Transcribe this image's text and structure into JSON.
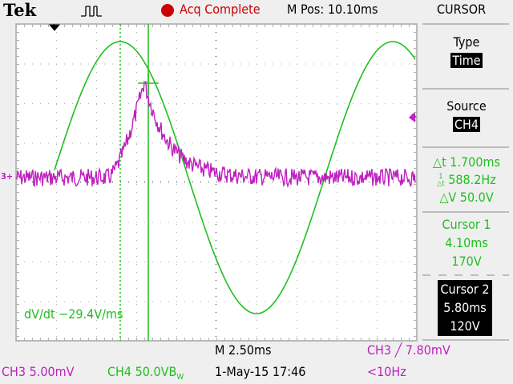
{
  "header": {
    "brand": "Tek",
    "acq_status": "Acq Complete",
    "m_pos": "M Pos: 10.10ms",
    "menu_title": "CURSOR"
  },
  "side_menu": {
    "type_label": "Type",
    "type_value": "Time",
    "source_label": "Source",
    "source_value": "CH4",
    "delta_t": "△t 1.700ms",
    "inv_delta_t": "588.2Hz",
    "delta_v": "△V 50.0V",
    "cursor1_label": "Cursor 1",
    "cursor1_time": "4.10ms",
    "cursor1_value": "170V",
    "cursor2_label": "Cursor 2",
    "cursor2_time": "5.80ms",
    "cursor2_value": "120V"
  },
  "screen": {
    "measurement": "dV/dt −29.4V/ms",
    "ch3_marker": "3+"
  },
  "footer": {
    "timebase": "M 2.50ms",
    "trigger": "CH3 ╱ 7.80mV",
    "ch3_scale": "CH3  5.00mV",
    "ch4_scale": "CH4  50.0VB",
    "bw_suffix": "W",
    "datetime": "1-May-15 17:46",
    "trigger_freq": "<10Hz"
  },
  "colors": {
    "ch3": "#c020c0",
    "ch4": "#1fbf1f",
    "acq": "#cc0000"
  }
}
